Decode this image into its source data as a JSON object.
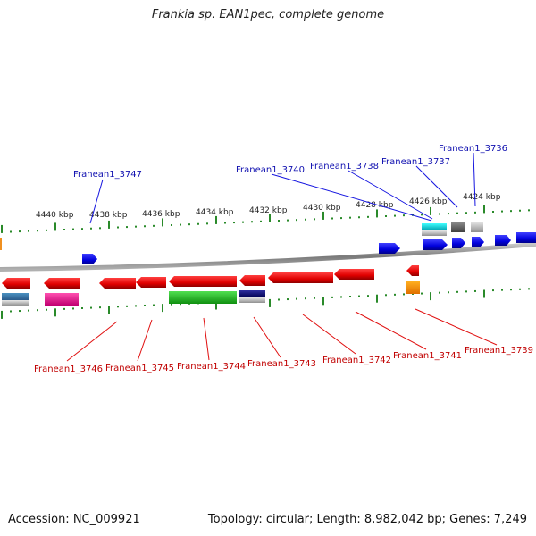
{
  "title": "Frankia sp. EAN1pec, complete genome",
  "footer": {
    "accession": "Accession: NC_009921",
    "genome_info": "Topology: circular; Length: 8,982,042 bp; Genes: 7,249"
  },
  "scale_labels": [
    "4440 kbp",
    "4438 kbp",
    "4436 kbp",
    "4434 kbp",
    "4432 kbp",
    "4430 kbp",
    "4428 kbp",
    "4426 kbp",
    "4424 kbp"
  ],
  "top_gene_labels": [
    "Franean1_3747",
    "Franean1_3740",
    "Franean1_3738",
    "Franean1_3737",
    "Franean1_3736"
  ],
  "bottom_gene_labels": [
    "Franean1_3746",
    "Franean1_3745",
    "Franean1_3744",
    "Franean1_3743",
    "Franean1_3742",
    "Franean1_3741",
    "Franean1_3739"
  ],
  "colors": {
    "forward_gene": "#1515e0",
    "reverse_gene": "#e01010",
    "forward_label": "#1010b0",
    "reverse_label": "#c00000",
    "backbone": "#8a8a8a",
    "tick": "#2a8a2a"
  }
}
